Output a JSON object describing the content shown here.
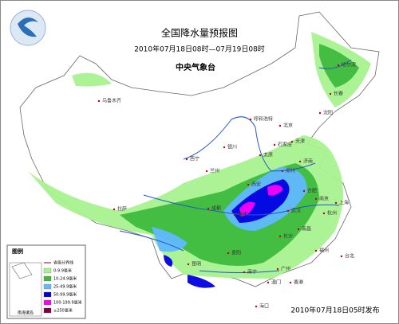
{
  "title": "全国降水量预报图",
  "subtitle": "2010年07月18日08时—07月19日08时",
  "issuer": "中央气象台",
  "footer": "2010年07月18日05时发布",
  "inset_label": "南海诸岛",
  "legend": {
    "title": "图例",
    "boundary": "省级分界线",
    "items": [
      {
        "label": "0-9.9毫米",
        "color": "#a6f28f"
      },
      {
        "label": "10-24.9毫米",
        "color": "#3dba3d"
      },
      {
        "label": "25-49.9毫米",
        "color": "#61b8ff"
      },
      {
        "label": "50-99.9毫米",
        "color": "#0000e1"
      },
      {
        "label": "100-199.9毫米",
        "color": "#fa00fa"
      },
      {
        "label": "≥250毫米",
        "color": "#800040"
      }
    ]
  },
  "cities": [
    "哈尔滨",
    "长春",
    "沈阳",
    "乌鲁木齐",
    "呼和浩特",
    "北京",
    "天津",
    "石家庄",
    "太原",
    "济南",
    "银川",
    "西宁",
    "兰州",
    "郑州",
    "西安",
    "合肥",
    "南京",
    "上海",
    "武汉",
    "杭州",
    "拉萨",
    "成都",
    "重庆",
    "长沙",
    "南昌",
    "贵阳",
    "昆明",
    "福州",
    "台北",
    "广州",
    "南宁",
    "澳门",
    "香港",
    "海口"
  ]
}
